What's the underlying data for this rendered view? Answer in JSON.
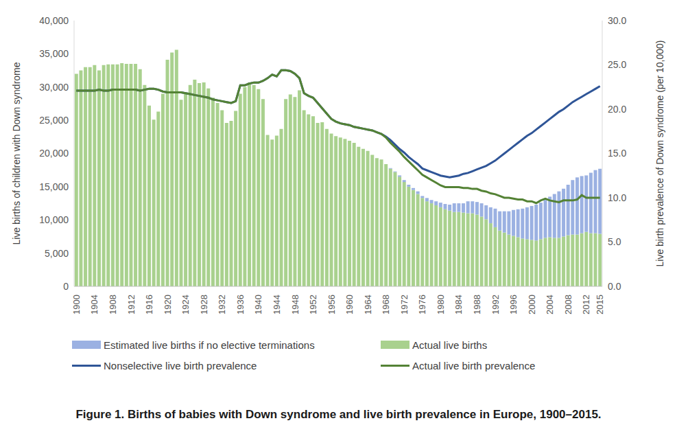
{
  "chart_data": {
    "type": "bar",
    "title": "Figure 1. Births of babies with Down syndrome and live birth prevalence in Europe, 1900–2015.",
    "y_label": "Live births of children with Down syndrome",
    "y2_label": "Live birth prevalence of Down syndrome (per 10,000)",
    "stacked": true,
    "grid": false,
    "legend": "bottom",
    "categories": [
      "1900",
      null,
      null,
      null,
      "1904",
      null,
      null,
      null,
      "1908",
      null,
      null,
      null,
      "1912",
      null,
      null,
      null,
      "1916",
      null,
      null,
      null,
      "1920",
      null,
      null,
      null,
      "1924",
      null,
      null,
      null,
      "1928",
      null,
      null,
      null,
      "1932",
      null,
      null,
      null,
      "1936",
      null,
      null,
      null,
      "1940",
      null,
      null,
      null,
      "1944",
      null,
      null,
      null,
      "1948",
      null,
      null,
      null,
      "1952",
      null,
      null,
      null,
      "1956",
      null,
      null,
      null,
      "1960",
      null,
      null,
      null,
      "1964",
      null,
      null,
      null,
      "1968",
      null,
      null,
      null,
      "1972",
      null,
      null,
      null,
      "1976",
      null,
      null,
      null,
      "1980",
      null,
      null,
      null,
      "1984",
      null,
      null,
      null,
      "1988",
      null,
      null,
      null,
      "1992",
      null,
      null,
      null,
      "1996",
      null,
      null,
      null,
      "2000",
      null,
      null,
      null,
      "2004",
      null,
      null,
      null,
      "2008",
      null,
      null,
      null,
      "2012",
      null,
      null,
      "2015"
    ],
    "ylim": [
      0,
      40000
    ],
    "yticks": [
      0,
      {
        "value": 5000,
        "label": "5,000"
      },
      {
        "value": 10000,
        "label": "10,000"
      },
      {
        "value": 15000,
        "label": "15,000"
      },
      {
        "value": 20000,
        "label": "20,000"
      },
      {
        "value": 25000,
        "label": "25,000"
      },
      {
        "value": 30000,
        "label": "30,000"
      },
      {
        "value": 35000,
        "label": "35,000"
      },
      {
        "value": 40000,
        "label": "40,000"
      }
    ],
    "y2lim": [
      0,
      30
    ],
    "y2ticks": [
      {
        "value": 0,
        "label": "0.0"
      },
      {
        "value": 5,
        "label": "5.0"
      },
      {
        "value": 10,
        "label": "10.0"
      },
      {
        "value": 15,
        "label": "15.0"
      },
      {
        "value": 20,
        "label": "20.0"
      },
      {
        "value": 25,
        "label": "25.0"
      },
      {
        "value": 30,
        "label": "30.0"
      }
    ],
    "series": [
      {
        "name": "Estimated live births if no elective terminations",
        "type": "bar",
        "color": "#9bb1e2",
        "values": [
          0,
          0,
          0,
          0,
          0,
          0,
          0,
          0,
          0,
          0,
          0,
          0,
          0,
          0,
          0,
          0,
          0,
          0,
          0,
          0,
          0,
          0,
          0,
          0,
          0,
          0,
          0,
          0,
          0,
          0,
          0,
          0,
          0,
          0,
          0,
          0,
          0,
          0,
          0,
          0,
          0,
          0,
          0,
          0,
          0,
          0,
          0,
          0,
          0,
          0,
          0,
          0,
          0,
          0,
          0,
          0,
          0,
          0,
          0,
          0,
          0,
          0,
          0,
          0,
          0,
          0,
          0,
          0,
          0,
          100,
          100,
          200,
          300,
          300,
          300,
          400,
          300,
          500,
          500,
          600,
          700,
          800,
          900,
          1300,
          1300,
          1400,
          1800,
          1800,
          1900,
          2000,
          2100,
          2400,
          2800,
          2900,
          3200,
          3500,
          3900,
          4200,
          4500,
          4800,
          5100,
          5400,
          5500,
          5700,
          6100,
          6600,
          7000,
          7200,
          7600,
          8200,
          8600,
          8600,
          8500,
          9100,
          9500,
          9800
        ]
      },
      {
        "name": "Actual live births",
        "type": "bar",
        "color": "#a9d18e",
        "values": [
          32000,
          32500,
          33000,
          33000,
          33300,
          32500,
          33300,
          33400,
          33400,
          33400,
          33600,
          33500,
          33500,
          33500,
          32700,
          30300,
          27200,
          25100,
          26300,
          29000,
          34100,
          35200,
          35600,
          28100,
          29000,
          30300,
          31100,
          30600,
          30700,
          29800,
          28400,
          27600,
          26500,
          24600,
          24900,
          26400,
          29000,
          30000,
          30700,
          30300,
          29700,
          28200,
          22800,
          22100,
          22700,
          23700,
          28200,
          28900,
          28500,
          29500,
          26500,
          25900,
          25600,
          24600,
          24700,
          23700,
          23000,
          22600,
          22400,
          22200,
          21900,
          21600,
          21000,
          20700,
          20400,
          19800,
          19300,
          19100,
          18400,
          17700,
          17200,
          16500,
          15700,
          15000,
          14500,
          13900,
          13300,
          12800,
          12500,
          12200,
          11900,
          11600,
          11400,
          11200,
          11200,
          11100,
          11000,
          11000,
          10800,
          10500,
          10100,
          9500,
          8900,
          8400,
          8100,
          7800,
          7600,
          7400,
          7200,
          7100,
          7000,
          6900,
          7100,
          7300,
          7400,
          7300,
          7300,
          7500,
          7700,
          7800,
          7800,
          8000,
          8200,
          8000,
          8000,
          7900
        ]
      },
      {
        "name": "Nonselective live birth prevalence",
        "type": "line",
        "axis": "y2",
        "color": "#2f5597",
        "values": [
          22.1,
          22.1,
          22.1,
          22.1,
          22.1,
          22.2,
          22.1,
          22.1,
          22.2,
          22.2,
          22.2,
          22.2,
          22.2,
          22.2,
          22.1,
          22.2,
          22.3,
          22.3,
          22.2,
          22.0,
          21.9,
          21.9,
          21.9,
          21.9,
          21.8,
          21.7,
          21.6,
          21.5,
          21.4,
          21.3,
          21.1,
          21.0,
          20.9,
          20.8,
          20.7,
          20.9,
          22.7,
          22.7,
          22.9,
          23.0,
          23.0,
          23.2,
          23.5,
          23.9,
          23.7,
          24.4,
          24.4,
          24.3,
          24.0,
          23.5,
          21.8,
          21.5,
          21.3,
          20.7,
          20.1,
          19.5,
          18.9,
          18.6,
          18.4,
          18.3,
          18.2,
          18.0,
          17.9,
          17.8,
          17.7,
          17.6,
          17.4,
          17.2,
          16.9,
          16.5,
          16.0,
          15.5,
          15.1,
          14.6,
          14.2,
          13.8,
          13.3,
          13.1,
          12.9,
          12.7,
          12.5,
          12.4,
          12.3,
          12.4,
          12.5,
          12.7,
          12.8,
          13.0,
          13.2,
          13.4,
          13.6,
          13.9,
          14.2,
          14.6,
          15.0,
          15.4,
          15.8,
          16.2,
          16.6,
          17.0,
          17.3,
          17.7,
          18.1,
          18.5,
          18.9,
          19.3,
          19.7,
          20.0,
          20.4,
          20.8,
          21.1,
          21.4,
          21.7,
          22.0,
          22.3,
          22.6
        ]
      },
      {
        "name": "Actual live birth prevalence",
        "type": "line",
        "axis": "y2",
        "color": "#548235",
        "values": [
          22.1,
          22.1,
          22.1,
          22.1,
          22.1,
          22.2,
          22.1,
          22.1,
          22.2,
          22.2,
          22.2,
          22.2,
          22.2,
          22.2,
          22.1,
          22.2,
          22.3,
          22.3,
          22.2,
          22.0,
          21.9,
          21.9,
          21.9,
          21.9,
          21.8,
          21.7,
          21.6,
          21.5,
          21.4,
          21.3,
          21.1,
          21.0,
          20.9,
          20.8,
          20.7,
          20.9,
          22.7,
          22.7,
          22.9,
          23.0,
          23.0,
          23.2,
          23.5,
          23.9,
          23.7,
          24.4,
          24.4,
          24.3,
          24.0,
          23.5,
          21.8,
          21.5,
          21.3,
          20.7,
          20.1,
          19.5,
          18.9,
          18.6,
          18.4,
          18.3,
          18.2,
          18.0,
          17.9,
          17.8,
          17.7,
          17.6,
          17.4,
          17.2,
          16.8,
          16.2,
          15.7,
          15.2,
          14.6,
          14.1,
          13.6,
          13.1,
          12.6,
          12.3,
          12.0,
          11.7,
          11.4,
          11.2,
          11.2,
          11.2,
          11.2,
          11.1,
          11.1,
          11.0,
          11.0,
          10.8,
          10.7,
          10.5,
          10.4,
          10.2,
          10.0,
          10.0,
          9.9,
          9.8,
          9.8,
          9.6,
          9.6,
          9.4,
          9.7,
          9.9,
          9.7,
          9.6,
          9.5,
          9.7,
          9.7,
          9.7,
          9.8,
          10.3,
          10.0,
          10.0,
          10.0,
          10.0
        ]
      }
    ]
  }
}
